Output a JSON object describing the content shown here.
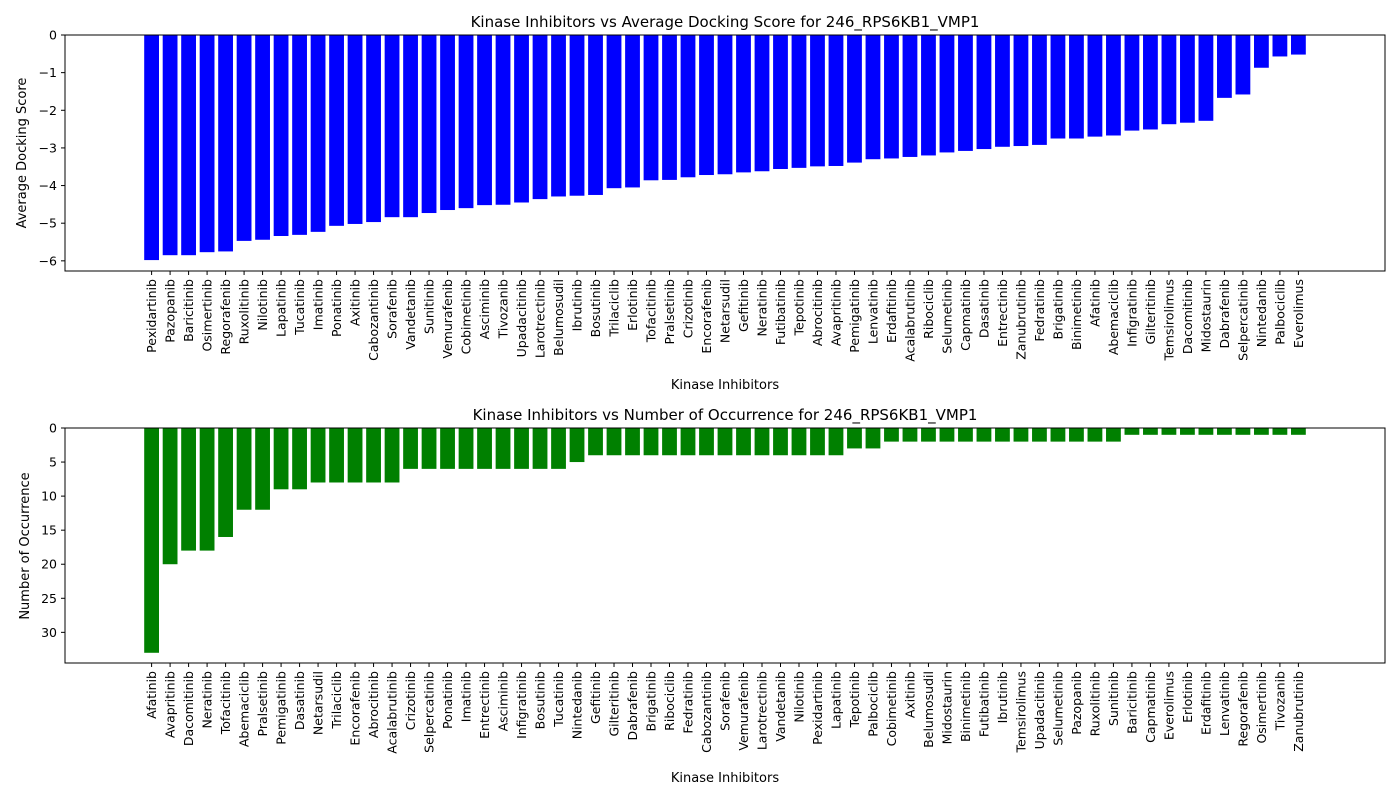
{
  "chart_data": [
    {
      "type": "bar",
      "title": "Kinase Inhibitors vs Average Docking Score for 246_RPS6KB1_VMP1",
      "xlabel": "Kinase Inhibitors",
      "ylabel": "Average Docking Score",
      "ylim": [
        -6.27,
        0
      ],
      "yticks": [
        0,
        -1,
        -2,
        -3,
        -4,
        -5,
        -6
      ],
      "color": "#0000ff",
      "categories": [
        "Pexidartinib",
        "Pazopanib",
        "Baricitinib",
        "Osimertinib",
        "Regorafenib",
        "Ruxolitinib",
        "Nilotinib",
        "Lapatinib",
        "Tucatinib",
        "Imatinib",
        "Ponatinib",
        "Axitinib",
        "Cabozantinib",
        "Sorafenib",
        "Vandetanib",
        "Sunitinib",
        "Vemurafenib",
        "Cobimetinib",
        "Asciminib",
        "Tivozanib",
        "Upadacitinib",
        "Larotrectinib",
        "Belumosudil",
        "Ibrutinib",
        "Bosutinib",
        "Trilaciclib",
        "Erlotinib",
        "Tofacitinib",
        "Pralsetinib",
        "Crizotinib",
        "Encorafenib",
        "Netarsudil",
        "Gefitinib",
        "Neratinib",
        "Futibatinib",
        "Tepotinib",
        "Abrocitinib",
        "Avapritinib",
        "Pemigatinib",
        "Lenvatinib",
        "Erdafitinib",
        "Acalabrutinib",
        "Ribociclib",
        "Selumetinib",
        "Capmatinib",
        "Dasatinib",
        "Entrectinib",
        "Zanubrutinib",
        "Fedratinib",
        "Brigatinib",
        "Binimetinib",
        "Afatinib",
        "Abemaciclib",
        "Infigratinib",
        "Gilteritinib",
        "Temsirolimus",
        "Dacomitinib",
        "Midostaurin",
        "Dabrafenib",
        "Selpercatinib",
        "Nintedanib",
        "Palbociclib",
        "Everolimus"
      ],
      "values": [
        -5.98,
        -5.85,
        -5.85,
        -5.77,
        -5.75,
        -5.47,
        -5.44,
        -5.34,
        -5.31,
        -5.23,
        -5.07,
        -5.02,
        -4.97,
        -4.84,
        -4.84,
        -4.73,
        -4.65,
        -4.6,
        -4.52,
        -4.51,
        -4.45,
        -4.36,
        -4.29,
        -4.27,
        -4.25,
        -4.07,
        -4.05,
        -3.86,
        -3.85,
        -3.78,
        -3.72,
        -3.7,
        -3.65,
        -3.62,
        -3.56,
        -3.53,
        -3.49,
        -3.48,
        -3.39,
        -3.3,
        -3.28,
        -3.24,
        -3.2,
        -3.12,
        -3.08,
        -3.03,
        -2.97,
        -2.95,
        -2.92,
        -2.75,
        -2.75,
        -2.7,
        -2.67,
        -2.54,
        -2.51,
        -2.37,
        -2.33,
        -2.28,
        -1.67,
        -1.58,
        -0.87,
        -0.57,
        -0.52
      ]
    },
    {
      "type": "bar",
      "title": "Kinase Inhibitors vs Number of Occurrence for 246_RPS6KB1_VMP1",
      "xlabel": "Kinase Inhibitors",
      "ylabel": "Number of Occurrence",
      "ylim": [
        0,
        34.5
      ],
      "yticks": [
        0,
        5,
        10,
        15,
        20,
        25,
        30
      ],
      "inverted_y": true,
      "color": "#008000",
      "categories": [
        "Afatinib",
        "Avapritinib",
        "Dacomitinib",
        "Neratinib",
        "Tofacitinib",
        "Abemaciclib",
        "Pralsetinib",
        "Pemigatinib",
        "Dasatinib",
        "Netarsudil",
        "Trilaciclib",
        "Encorafenib",
        "Abrocitinib",
        "Acalabrutinib",
        "Crizotinib",
        "Selpercatinib",
        "Ponatinib",
        "Imatinib",
        "Entrectinib",
        "Asciminib",
        "Infigratinib",
        "Bosutinib",
        "Tucatinib",
        "Nintedanib",
        "Gefitinib",
        "Gilteritinib",
        "Dabrafenib",
        "Brigatinib",
        "Ribociclib",
        "Fedratinib",
        "Cabozantinib",
        "Sorafenib",
        "Vemurafenib",
        "Larotrectinib",
        "Vandetanib",
        "Nilotinib",
        "Pexidartinib",
        "Lapatinib",
        "Tepotinib",
        "Palbociclib",
        "Cobimetinib",
        "Axitinib",
        "Belumosudil",
        "Midostaurin",
        "Binimetinib",
        "Futibatinib",
        "Ibrutinib",
        "Temsirolimus",
        "Upadacitinib",
        "Selumetinib",
        "Pazopanib",
        "Ruxolitinib",
        "Sunitinib",
        "Baricitinib",
        "Capmatinib",
        "Everolimus",
        "Erlotinib",
        "Erdafitinib",
        "Lenvatinib",
        "Regorafenib",
        "Osimertinib",
        "Tivozanib",
        "Zanubrutinib"
      ],
      "values": [
        33,
        20,
        18,
        18,
        16,
        12,
        12,
        9,
        9,
        8,
        8,
        8,
        8,
        8,
        6,
        6,
        6,
        6,
        6,
        6,
        6,
        6,
        6,
        5,
        4,
        4,
        4,
        4,
        4,
        4,
        4,
        4,
        4,
        4,
        4,
        4,
        4,
        4,
        3,
        3,
        2,
        2,
        2,
        2,
        2,
        2,
        2,
        2,
        2,
        2,
        2,
        2,
        2,
        1,
        1,
        1,
        1,
        1,
        1,
        1,
        1,
        1,
        1
      ]
    }
  ]
}
